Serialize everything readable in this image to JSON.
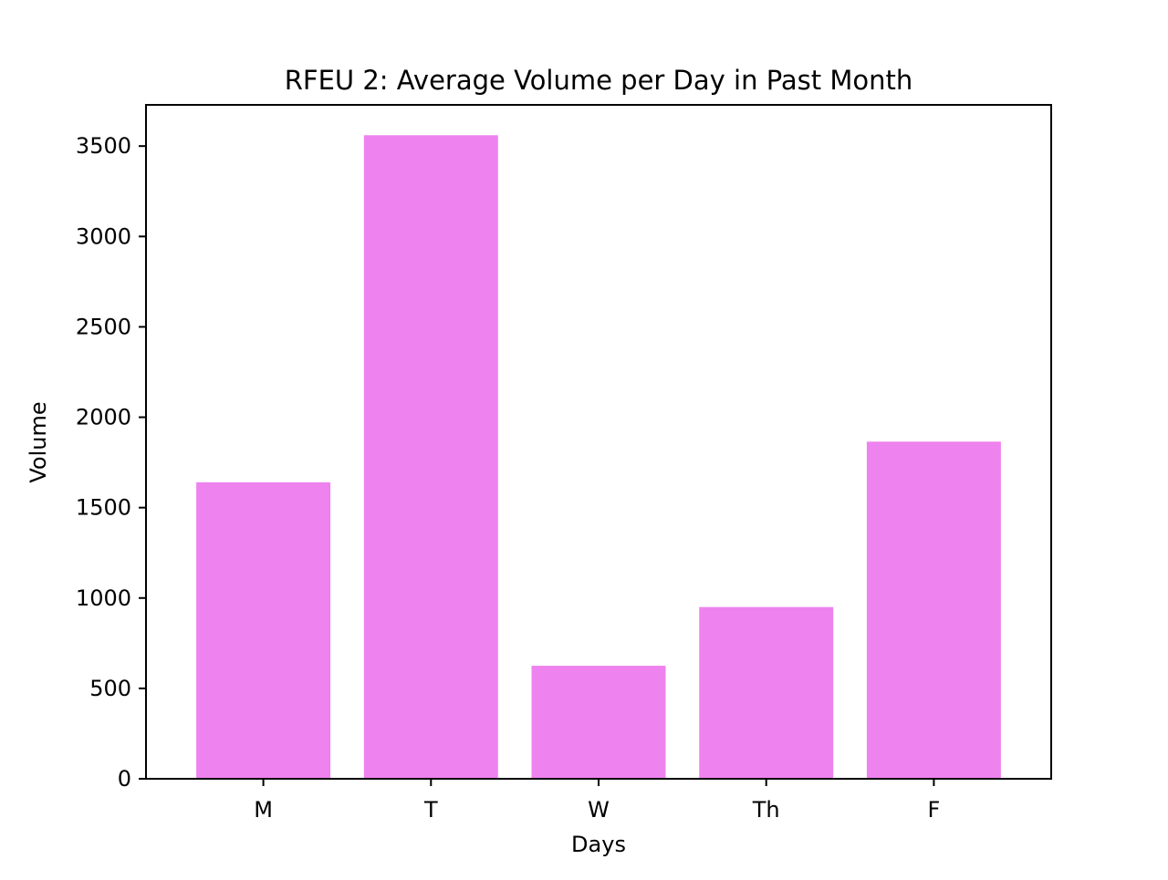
{
  "chart_data": {
    "type": "bar",
    "title": "RFEU 2: Average Volume per Day in Past Month",
    "xlabel": "Days",
    "ylabel": "Volume",
    "categories": [
      "M",
      "T",
      "W",
      "Th",
      "F"
    ],
    "values": [
      1640,
      3560,
      625,
      950,
      1865
    ],
    "ylim": [
      0,
      3728
    ],
    "yticks": [
      0,
      500,
      1000,
      1500,
      2000,
      2500,
      3000,
      3500
    ],
    "bar_color": "#ee82ee",
    "grid": false,
    "legend": "none"
  }
}
